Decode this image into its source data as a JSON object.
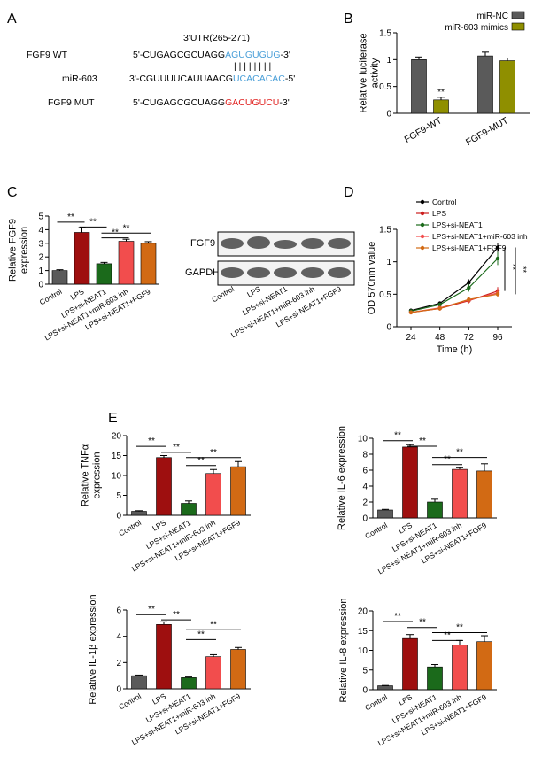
{
  "panel_labels": {
    "A": "A",
    "B": "B",
    "C": "C",
    "D": "D",
    "E": "E"
  },
  "panelA": {
    "utr_label": "3'UTR(265-271)",
    "rows": [
      {
        "name": "FGF9 WT",
        "prefix": "5'-CUGAGCGCUAGG",
        "highlight": "AGUGUGUG",
        "suffix": "-3'",
        "color": "#4a9fd8"
      },
      {
        "name": "miR-603",
        "prefix": "3'-CGUUUUCAUUAACG",
        "highlight": "UCACACAC",
        "suffix": "-5'",
        "color": "#4a9fd8"
      },
      {
        "name": "FGF9 MUT",
        "prefix": "5'-CUGAGCGCUAGG",
        "highlight": "GACUGUCU",
        "suffix": "-3'",
        "color": "#e0201e"
      }
    ],
    "pairing": "| | | | | | | |"
  },
  "blot": {
    "rows": [
      {
        "label": "FGF9"
      },
      {
        "label": "GAPDH"
      }
    ],
    "lanes": [
      "Control",
      "LPS",
      "LPS+si-NEAT1",
      "LPS+si-NEAT1+miR-603 inh",
      "LPS+si-NEAT1+FGF9"
    ]
  },
  "colors": {
    "gray": "#5a5a5a",
    "darkred": "#9e0f0f",
    "green": "#1b6a1b",
    "red": "#f24d4d",
    "orange": "#d26a14",
    "olive": "#8f8f00"
  },
  "chart_data": [
    {
      "id": "B",
      "type": "bar",
      "categories": [
        "FGF9-WT",
        "FGF9-MUT"
      ],
      "series": [
        {
          "name": "miR-NC",
          "values": [
            1.0,
            1.07
          ],
          "errors": [
            0.05,
            0.07
          ],
          "color": "#5a5a5a"
        },
        {
          "name": "miR-603 mimics",
          "values": [
            0.25,
            0.98
          ],
          "errors": [
            0.05,
            0.05
          ],
          "color": "#8f8f00"
        }
      ],
      "significance": [
        {
          "category": 0,
          "series": 1,
          "label": "**"
        }
      ],
      "ylabel": "Relative luciferase activity",
      "ylim": [
        0,
        1.5
      ],
      "yticks": [
        0,
        0.5,
        1.0,
        1.5
      ],
      "legend": "top-right"
    },
    {
      "id": "C",
      "type": "bar",
      "categories": [
        "Control",
        "LPS",
        "LPS+si-NEAT1",
        "LPS+si-NEAT1+miR-603 inh",
        "LPS+si-NEAT1+FGF9"
      ],
      "values": [
        1.0,
        3.8,
        1.5,
        3.15,
        3.0
      ],
      "errors": [
        0.06,
        0.35,
        0.1,
        0.15,
        0.12
      ],
      "colors": [
        "#5a5a5a",
        "#9e0f0f",
        "#1b6a1b",
        "#f24d4d",
        "#d26a14"
      ],
      "ylabel": "Relative FGF9 expression",
      "ylim": [
        0,
        5
      ],
      "yticks": [
        0,
        1,
        2,
        3,
        4,
        5
      ],
      "brackets": [
        {
          "from": 0,
          "to": 1,
          "level": 4.55,
          "label": "**"
        },
        {
          "from": 1,
          "to": 2,
          "level": 4.2,
          "label": "**"
        },
        {
          "from": 2,
          "to": 4,
          "level": 3.75,
          "label": "**"
        },
        {
          "from": 2,
          "to": 3,
          "level": 3.4,
          "label": "**"
        }
      ]
    },
    {
      "id": "D",
      "type": "line",
      "x": [
        24,
        48,
        72,
        96
      ],
      "series": [
        {
          "name": "Control",
          "values": [
            0.25,
            0.36,
            0.68,
            1.22
          ],
          "errors": [
            0.03,
            0.03,
            0.05,
            0.07
          ],
          "color": "#000000"
        },
        {
          "name": "LPS",
          "values": [
            0.22,
            0.28,
            0.4,
            0.55
          ],
          "errors": [
            0.02,
            0.03,
            0.04,
            0.06
          ],
          "color": "#cc1f1f"
        },
        {
          "name": "LPS+si-NEAT1",
          "values": [
            0.24,
            0.34,
            0.6,
            1.05
          ],
          "errors": [
            0.03,
            0.03,
            0.06,
            0.1
          ],
          "color": "#1b6a1b"
        },
        {
          "name": "LPS+si-NEAT1+miR-603 inh",
          "values": [
            0.22,
            0.29,
            0.41,
            0.52
          ],
          "errors": [
            0.02,
            0.03,
            0.04,
            0.06
          ],
          "color": "#f24d4d"
        },
        {
          "name": "LPS+si-NEAT1+FGF9",
          "values": [
            0.22,
            0.28,
            0.42,
            0.5
          ],
          "errors": [
            0.02,
            0.03,
            0.04,
            0.05
          ],
          "color": "#d26a14"
        }
      ],
      "xlabel": "Time (h)",
      "ylabel": "OD 570nm value",
      "ylim": [
        0,
        1.5
      ],
      "yticks": [
        0,
        0.5,
        1.0,
        1.5
      ],
      "significance": [
        "**",
        "**"
      ],
      "legend": "top-left"
    },
    {
      "id": "E1",
      "type": "bar",
      "categories": [
        "Control",
        "LPS",
        "LPS+si-NEAT1",
        "LPS+si-NEAT1+miR-603 inh",
        "LPS+si-NEAT1+FGF9"
      ],
      "values": [
        1.0,
        14.5,
        3.0,
        10.5,
        12.2
      ],
      "errors": [
        0.15,
        0.5,
        0.6,
        1.0,
        1.3
      ],
      "colors": [
        "#5a5a5a",
        "#9e0f0f",
        "#1b6a1b",
        "#f24d4d",
        "#d26a14"
      ],
      "ylabel": "Relative TNFα expression",
      "ylim": [
        0,
        20
      ],
      "yticks": [
        0,
        5,
        10,
        15,
        20
      ],
      "brackets": [
        {
          "from": 0,
          "to": 1,
          "level": 17.3,
          "label": "**"
        },
        {
          "from": 1,
          "to": 2,
          "level": 15.8,
          "label": "**"
        },
        {
          "from": 2,
          "to": 4,
          "level": 14.5,
          "label": "**"
        },
        {
          "from": 2,
          "to": 3,
          "level": 12.5,
          "label": "**"
        }
      ]
    },
    {
      "id": "E2",
      "type": "bar",
      "categories": [
        "Control",
        "LPS",
        "LPS+si-NEAT1",
        "LPS+si-NEAT1+miR-603 inh",
        "LPS+si-NEAT1+FGF9"
      ],
      "values": [
        1.0,
        8.9,
        2.0,
        6.1,
        5.9
      ],
      "errors": [
        0.08,
        0.3,
        0.35,
        0.2,
        0.9
      ],
      "colors": [
        "#5a5a5a",
        "#9e0f0f",
        "#1b6a1b",
        "#f24d4d",
        "#d26a14"
      ],
      "ylabel": "Relative IL-6 expression",
      "ylim": [
        0,
        10
      ],
      "yticks": [
        0,
        2,
        4,
        6,
        8,
        10
      ],
      "brackets": [
        {
          "from": 0,
          "to": 1,
          "level": 9.7,
          "label": "**"
        },
        {
          "from": 1,
          "to": 2,
          "level": 9.0,
          "label": "**"
        },
        {
          "from": 2,
          "to": 4,
          "level": 7.6,
          "label": "**"
        },
        {
          "from": 2,
          "to": 3,
          "level": 6.7,
          "label": "**"
        }
      ]
    },
    {
      "id": "E3",
      "type": "bar",
      "categories": [
        "Control",
        "LPS",
        "LPS+si-NEAT1",
        "LPS+si-NEAT1+miR-603 inh",
        "LPS+si-NEAT1+FGF9"
      ],
      "values": [
        1.0,
        4.9,
        0.85,
        2.45,
        3.0
      ],
      "errors": [
        0.05,
        0.2,
        0.05,
        0.15,
        0.15
      ],
      "colors": [
        "#5a5a5a",
        "#9e0f0f",
        "#1b6a1b",
        "#f24d4d",
        "#d26a14"
      ],
      "ylabel": "Relative IL-1β expression",
      "ylim": [
        0,
        6
      ],
      "yticks": [
        0,
        2,
        4,
        6
      ],
      "brackets": [
        {
          "from": 0,
          "to": 1,
          "level": 5.65,
          "label": "**"
        },
        {
          "from": 1,
          "to": 2,
          "level": 5.25,
          "label": "**"
        },
        {
          "from": 2,
          "to": 4,
          "level": 4.5,
          "label": "**"
        },
        {
          "from": 2,
          "to": 3,
          "level": 3.75,
          "label": "**"
        }
      ]
    },
    {
      "id": "E4",
      "type": "bar",
      "categories": [
        "Control",
        "LPS",
        "LPS+si-NEAT1",
        "LPS+si-NEAT1+miR-603 inh",
        "LPS+si-NEAT1+FGF9"
      ],
      "values": [
        1.0,
        13.0,
        5.8,
        11.3,
        12.2
      ],
      "errors": [
        0.08,
        1.0,
        0.6,
        1.2,
        1.5
      ],
      "colors": [
        "#5a5a5a",
        "#9e0f0f",
        "#1b6a1b",
        "#f24d4d",
        "#d26a14"
      ],
      "ylabel": "Relative IL-8 expression",
      "ylim": [
        0,
        20
      ],
      "yticks": [
        0,
        5,
        10,
        15,
        20
      ],
      "brackets": [
        {
          "from": 0,
          "to": 1,
          "level": 17.3,
          "label": "**"
        },
        {
          "from": 1,
          "to": 2,
          "level": 15.8,
          "label": "**"
        },
        {
          "from": 2,
          "to": 4,
          "level": 14.5,
          "label": "**"
        },
        {
          "from": 2,
          "to": 3,
          "level": 12.5,
          "label": "**"
        }
      ]
    }
  ]
}
